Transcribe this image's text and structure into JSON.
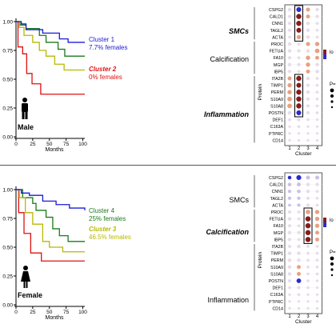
{
  "colors": {
    "cluster1": "#1a1ad8",
    "cluster2": "#e01010",
    "cluster3": "#b8b800",
    "cluster4": "#1a7a1a",
    "dot_high": "#8b1a1a",
    "dot_mid": "#e8a080",
    "dot_low": "#c8c0e8",
    "dot_neg": "#2a2ad0"
  },
  "panels": [
    {
      "sex_label": "Male",
      "km": {
        "y_ticks": [
          "0.00",
          "0.25",
          "0.50",
          "0.75",
          "1.00"
        ],
        "x_ticks": [
          "0",
          "25",
          "50",
          "75",
          "100"
        ],
        "x_label": "Months",
        "legend": [
          {
            "name": "Cluster 1",
            "pct": "7.7% females",
            "color_key": "cluster1",
            "emph": false
          },
          {
            "name": "Cluster 2",
            "pct": "0% females",
            "color_key": "cluster2",
            "emph": true
          }
        ]
      },
      "groups": [
        {
          "name": "SMCs",
          "emph": true
        },
        {
          "name": "Calcification",
          "emph": false
        },
        {
          "name": "Inflammation",
          "emph": true
        }
      ],
      "proteins": [
        "CSPG2",
        "CALD1",
        "CNN1",
        "TAGL2",
        "ACTA",
        "PROC",
        "FETUA",
        "FA10",
        "MGP",
        "IBP5",
        "ITA2B",
        "TIMP1",
        "PERM",
        "S10A9",
        "S10A8",
        "POSTN",
        "DEF1",
        "C163A",
        "PTPRC",
        "CD14"
      ],
      "y_label": "Protein",
      "x_label": "Cluster",
      "clusters": [
        "1",
        "2",
        "3",
        "4"
      ],
      "boxes": [
        {
          "col": 1,
          "row_start": 0,
          "row_end": 4
        },
        {
          "col": 1,
          "row_start": 10,
          "row_end": 15
        }
      ],
      "legend_partial": [
        "lo",
        "P="
      ]
    },
    {
      "sex_label": "Female",
      "km": {
        "y_ticks": [
          "0.00",
          "0.25",
          "0.50",
          "0.75",
          "1.00"
        ],
        "x_ticks": [
          "0",
          "25",
          "50",
          "75",
          "100"
        ],
        "x_label": "Months",
        "legend": [
          {
            "name": "Cluster 4",
            "pct": "25% females",
            "color_key": "cluster4",
            "emph": false
          },
          {
            "name": "Cluster 3",
            "pct": "46.5% females",
            "color_key": "cluster3",
            "emph": true
          }
        ]
      },
      "groups": [
        {
          "name": "SMCs",
          "emph": false
        },
        {
          "name": "Calcification",
          "emph": true
        },
        {
          "name": "Inflammation",
          "emph": false
        }
      ],
      "proteins": [
        "CSPG2",
        "CALD1",
        "CNN1",
        "TAGL2",
        "ACTA",
        "PROC",
        "FETUA",
        "FA10",
        "MGP",
        "IBP5",
        "ITA2B",
        "TIMP1",
        "PERM",
        "S10A9",
        "S10A8",
        "POSTN",
        "DEF1",
        "C163A",
        "PTPRC",
        "CD14"
      ],
      "y_label": "Protein",
      "x_label": "Cluster",
      "clusters": [
        "1",
        "2",
        "3",
        "4"
      ],
      "boxes": [
        {
          "col": 2,
          "row_start": 5,
          "row_end": 9
        }
      ],
      "legend_partial": [
        "lo",
        "P="
      ]
    }
  ]
}
